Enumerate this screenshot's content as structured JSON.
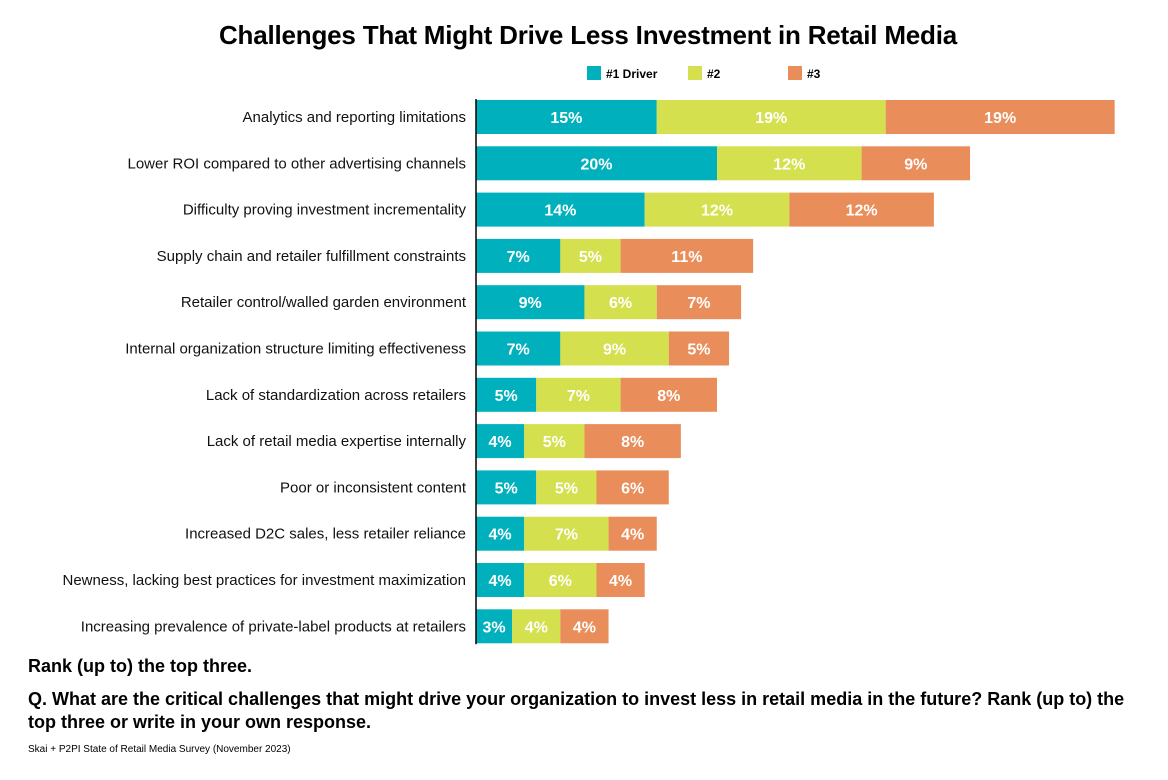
{
  "chart_data": {
    "type": "bar",
    "orientation": "horizontal",
    "stacked": true,
    "title": "Challenges That Might Drive Less Investment in Retail Media",
    "legend_position": "top",
    "grid": false,
    "xlim": [
      0,
      55
    ],
    "categories": [
      "Analytics and reporting limitations",
      "Lower ROI compared to other advertising channels",
      "Difficulty proving investment incrementality",
      "Supply chain and retailer fulfillment constraints",
      "Retailer control/walled garden environment",
      "Internal organization structure limiting effectiveness",
      "Lack of standardization across retailers",
      "Lack of retail media expertise internally",
      "Poor or inconsistent content",
      "Increased D2C sales, less retailer reliance",
      "Newness, lacking best practices for investment maximization",
      "Increasing prevalence of private-label products at retailers"
    ],
    "series": [
      {
        "name": "#1 Driver",
        "color": "#00b0bd",
        "values": [
          15,
          20,
          14,
          7,
          9,
          7,
          5,
          4,
          5,
          4,
          4,
          3
        ]
      },
      {
        "name": "#2",
        "color": "#d4e04d",
        "values": [
          19,
          12,
          12,
          5,
          6,
          9,
          7,
          5,
          5,
          7,
          6,
          4
        ]
      },
      {
        "name": "#3",
        "color": "#e98d5a",
        "values": [
          19,
          9,
          12,
          11,
          7,
          5,
          8,
          8,
          6,
          4,
          4,
          4
        ]
      }
    ],
    "value_suffix": "%"
  },
  "notes": {
    "rank": "Rank (up to) the top three.",
    "question": "Q. What are the critical challenges that might drive your organization to invest less in retail media in the future? Rank (up to) the top three or write in your own response.",
    "source": "Skai + P2PI State of Retail Media Survey (November 2023)"
  }
}
